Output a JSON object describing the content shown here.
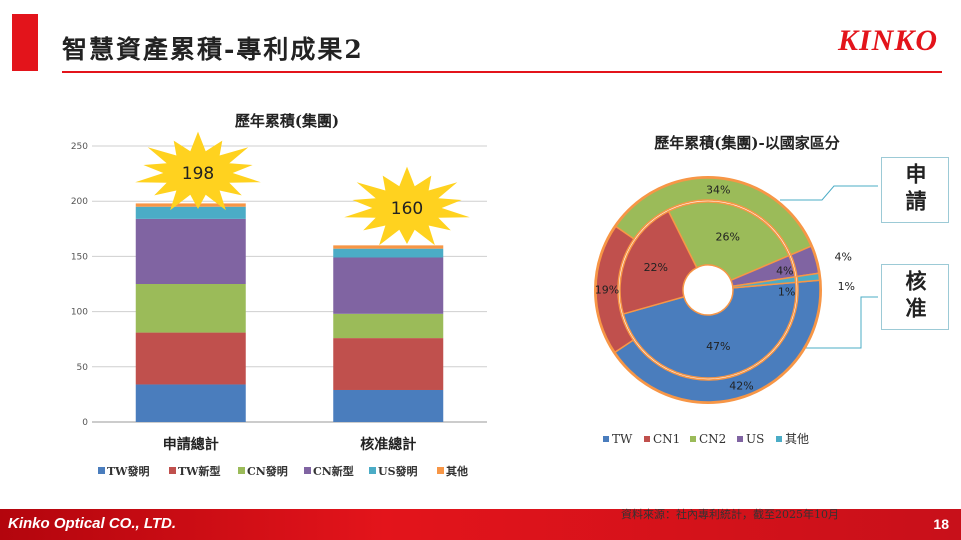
{
  "slide": {
    "title": "智慧資產累積-專利成果2",
    "brand": "KINKO",
    "source_note": "資料來源：社內專利統計，截至2025年10月",
    "company": "Kinko Optical CO., LTD.",
    "page_number": "18"
  },
  "colors": {
    "accent": "#e3141b",
    "TW": "#4a7dbd",
    "CN1": "#c0504d",
    "CN2": "#9bbb59",
    "US": "#8064a2",
    "other_teal": "#4bacc6",
    "other_orange": "#f79646",
    "burst": "#ffd21f"
  },
  "callouts": {
    "apply": "申請",
    "grant": "核准"
  },
  "chart_data": [
    {
      "type": "bar",
      "stacked": true,
      "title": "歷年累積(集團)",
      "categories": [
        "申請總計",
        "核准總計"
      ],
      "ylim": [
        0,
        250
      ],
      "yticks": [
        0,
        50,
        100,
        150,
        200,
        250
      ],
      "grid": true,
      "legend_position": "bottom",
      "series": [
        {
          "name": "TW發明",
          "values": [
            34,
            29
          ]
        },
        {
          "name": "TW新型",
          "values": [
            47,
            47
          ]
        },
        {
          "name": "CN發明",
          "values": [
            44,
            22
          ]
        },
        {
          "name": "CN新型",
          "values": [
            59,
            51
          ]
        },
        {
          "name": "US發明",
          "values": [
            11,
            8
          ]
        },
        {
          "name": "其他",
          "values": [
            3,
            3
          ]
        }
      ],
      "totals": [
        "198",
        "160"
      ]
    },
    {
      "type": "pie",
      "variant": "donut",
      "title": "歷年累積(集團)-以國家區分",
      "categories": [
        "TW",
        "CN1",
        "CN2",
        "US",
        "其他"
      ],
      "legend_position": "bottom",
      "series": [
        {
          "name": "申請",
          "ring": "outer",
          "values": [
            42,
            19,
            34,
            4,
            1
          ],
          "labels": [
            "42%",
            "19%",
            "34%",
            "4%",
            "1%"
          ]
        },
        {
          "name": "核准",
          "ring": "inner",
          "values": [
            47,
            22,
            26,
            4,
            1
          ],
          "labels": [
            "47%",
            "22%",
            "26%",
            "4%",
            "1%"
          ]
        }
      ]
    }
  ]
}
